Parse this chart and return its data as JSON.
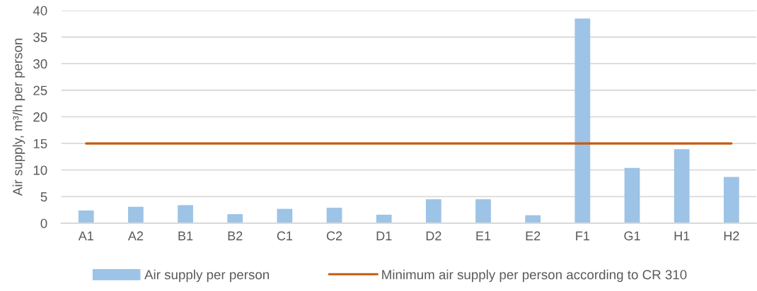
{
  "chart_data": {
    "type": "bar",
    "ylabel": "Air supply, m³/h per person",
    "categories": [
      "A1",
      "A2",
      "B1",
      "B2",
      "C1",
      "C2",
      "D1",
      "D2",
      "E1",
      "E2",
      "F1",
      "G1",
      "H1",
      "H2"
    ],
    "series": [
      {
        "name": "Air supply per person",
        "color": "#9dc3e6",
        "values": [
          2.4,
          3.1,
          3.4,
          1.7,
          2.7,
          2.9,
          1.6,
          4.5,
          4.5,
          1.5,
          38.5,
          10.4,
          13.9,
          8.7
        ]
      },
      {
        "name": "Minimum air supply per person according to CR 310",
        "type": "line",
        "color": "#c55a11",
        "values": [
          15,
          15,
          15,
          15,
          15,
          15,
          15,
          15,
          15,
          15,
          15,
          15,
          15,
          15
        ]
      }
    ],
    "ylim": [
      0,
      40
    ],
    "yticks": [
      0,
      5,
      10,
      15,
      20,
      25,
      30,
      35,
      40
    ],
    "grid": "y",
    "legend": "bottom"
  }
}
